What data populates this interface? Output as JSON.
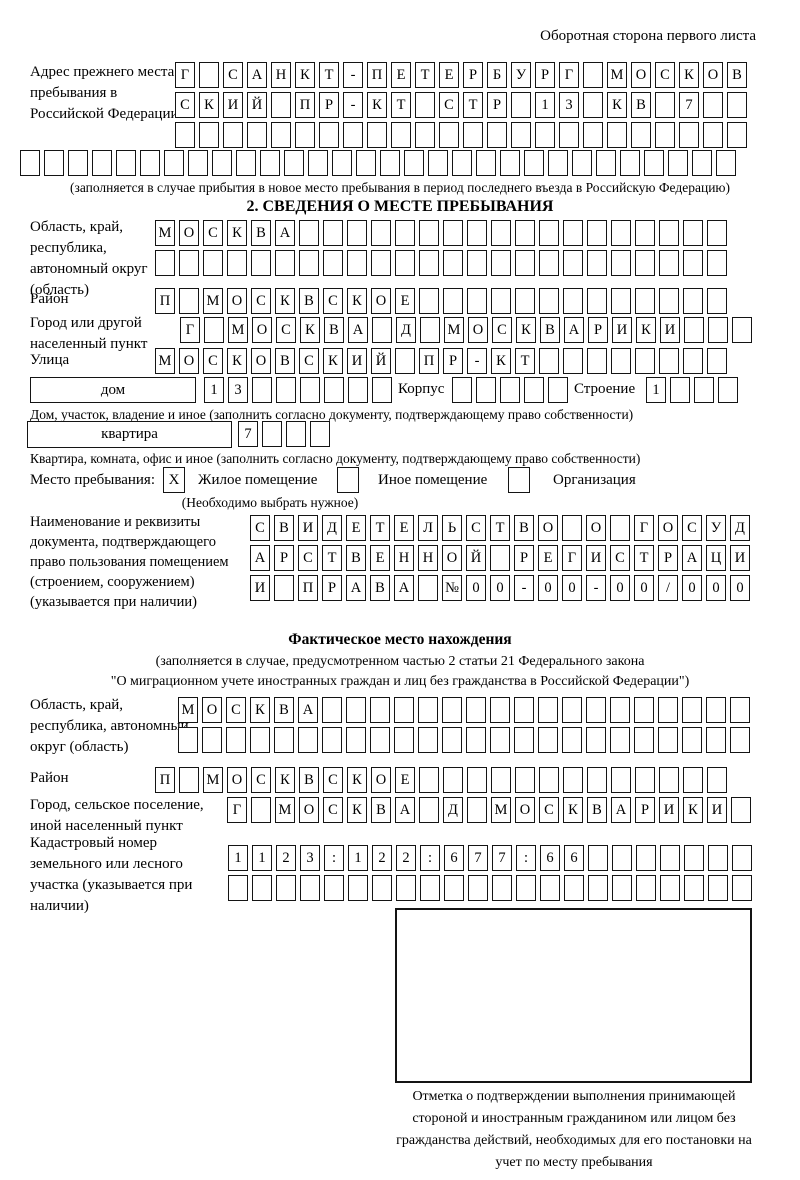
{
  "page": {
    "back_note": "Оборотная сторона первого листа"
  },
  "prev_address": {
    "label": "Адрес прежнего места пребывания в Российской Федерации",
    "row1": {
      "cells": "Г САНКТ-ПЕТЕРБУРГ МОСКОВ",
      "count": 24
    },
    "row2": {
      "cells": "СКИЙ ПР-КТ СТР 13 КВ 7",
      "count": 24
    },
    "row3": {
      "cells": "",
      "count": 24
    },
    "row4": {
      "cells": "",
      "count": 30
    },
    "note": "(заполняется в случае прибытия в новое место пребывания в период последнего въезда в Российскую Федерацию)"
  },
  "section2": {
    "title": "2. СВЕДЕНИЯ О МЕСТЕ ПРЕБЫВАНИЯ",
    "region_label": "Область, край, республика, автономный округ (область)",
    "region_row1": {
      "cells": "МОСКВА",
      "count": 24
    },
    "region_row2": {
      "cells": "",
      "count": 24
    },
    "district_label": "Район",
    "district_row": {
      "cells": "П МОСКВСКОЕ",
      "count": 24
    },
    "city_label": "Город или другой населенный пункт",
    "city_row": {
      "cells": "Г МОСКВА Д МОСКВАРИКИ",
      "count": 24
    },
    "street_label": "Улица",
    "street_row": {
      "cells": "МОСКОВСКИЙ ПР-КТ",
      "count": 24
    },
    "house_type": "дом",
    "house_row": {
      "cells": "13",
      "count": 8
    },
    "korpus_label": "Корпус",
    "korpus_row": {
      "cells": "",
      "count": 5
    },
    "stroenie_label": "Строение",
    "stroenie_row": {
      "cells": "1",
      "count": 4
    },
    "house_note": "Дом, участок, владение и иное (заполнить согласно документу, подтверждающему право собственности)",
    "apt_type": "квартира",
    "apt_row": {
      "cells": "7",
      "count": 4
    },
    "apt_note": "Квартира, комната, офис и иное (заполнить согласно документу, подтверждающему право собственности)",
    "stay_label": "Место пребывания:",
    "stay_options": [
      {
        "label": "Жилое помещение",
        "mark": "X"
      },
      {
        "label": "Иное помещение",
        "mark": ""
      },
      {
        "label": "Организация",
        "mark": ""
      }
    ],
    "stay_note": "(Необходимо выбрать нужное)",
    "doc_label": "Наименование и реквизиты документа, подтверждающего право пользования помещением (строением, сооружением) (указывается при наличии)",
    "doc_row1": {
      "cells": "СВИДЕТЕЛЬСТВО О ГОСУД",
      "count": 21
    },
    "doc_row2": {
      "cells": "АРСТВЕННОЙ РЕГИСТРАЦИ",
      "count": 21
    },
    "doc_row3": {
      "cells": "И ПРАВА №00-00-00/000",
      "count": 21
    }
  },
  "fact": {
    "title": "Фактическое место нахождения",
    "note1": "(заполняется в случае, предусмотренном частью 2 статьи 21 Федерального закона",
    "note2": "\"О миграционном учете иностранных граждан и лиц без гражданства в Российской Федерации\")",
    "region_label": "Область, край, республика, автономный округ (область)",
    "region_row1": {
      "cells": "МОСКВА",
      "count": 24
    },
    "region_row2": {
      "cells": "",
      "count": 24
    },
    "district_label": "Район",
    "district_row": {
      "cells": "П МОСКВСКОЕ",
      "count": 24
    },
    "city_label": "Город, сельское поселение, иной населенный пункт",
    "city_row": {
      "cells": "Г МОСКВА Д МОСКВАРИКИ",
      "count": 22
    },
    "cadastre_label": "Кадастровый номер земельного или лесного участка (указывается при наличии)",
    "cadastre_row1": {
      "cells": "1123:122:677:66",
      "count": 22
    },
    "cadastre_row2": {
      "cells": "",
      "count": 22
    },
    "stamp_note": "Отметка о подтверждении выполнения принимающей стороной и иностранным гражданином или лицом без гражданства действий, необходимых для его постановки на учет по месту пребывания"
  }
}
